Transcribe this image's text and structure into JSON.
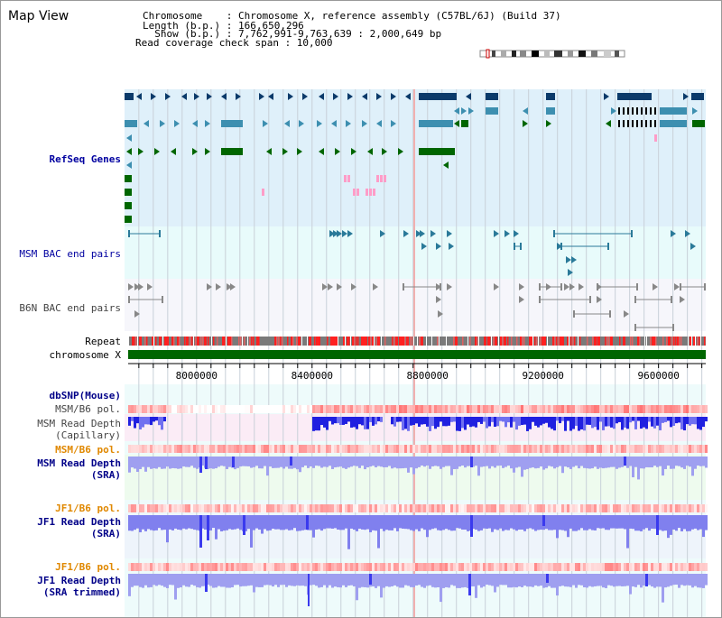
{
  "view": {
    "title": "Map View",
    "info_lines": [
      "Chromosome    : Chromosome X, reference assembly (C57BL/6J) (Build 37)",
      "Length (b.p.) : 166,650,296",
      "  Show (b.p.) : 7,762,991-9,763,639 : 2,000,649 bp",
      "Read coverage check span : 10,000"
    ]
  },
  "range": {
    "start": 7762991,
    "end": 9763639
  },
  "ruler_ticks": [
    "8000000",
    "8400000",
    "8800000",
    "9200000",
    "9600000"
  ],
  "tick_values": [
    8000000,
    8400000,
    8800000,
    9200000,
    9600000
  ],
  "tracks": {
    "refseq": "RefSeq Genes",
    "msm_bac": "MSM BAC end pairs",
    "b6n_bac": "B6N BAC end pairs",
    "repeat": "Repeat",
    "chromosome": "chromosome X",
    "dbsnp": "dbSNP(Mouse)",
    "msm_b6_pol_1": "MSM/B6 pol.",
    "msm_depth_cap": "MSM Read Depth\n(Capillary)",
    "msm_b6_pol_2": "MSM/B6 pol.",
    "msm_depth_sra": "MSM Read Depth\n(SRA)",
    "jf1_b6_pol_1": "JF1/B6 pol.",
    "jf1_depth_sra": "JF1 Read Depth\n(SRA)",
    "jf1_b6_pol_2": "JF1/B6 pol.",
    "jf1_depth_trim": "JF1 Read Depth\n(SRA trimmed)"
  },
  "colors": {
    "refseq_bg": "#dff0fa",
    "msm_bac_bg": "#e8fbfb",
    "b6n_bg": "#f6f6fb",
    "gene_dark": "#0b3a6a",
    "gene_mid": "#3d8fb0",
    "gene_green": "#006600",
    "gene_pink": "#ff9dc8",
    "chromosome_bar": "#006600",
    "pol_red": "#ff4444",
    "depth_blue": "#3a3aee",
    "depth_light": "#9f9ff0"
  }
}
